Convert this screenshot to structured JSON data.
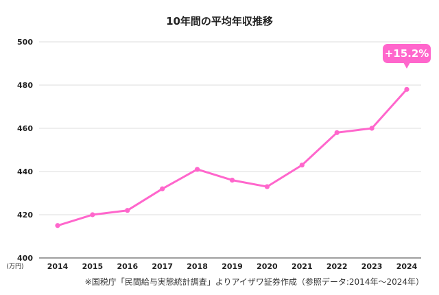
{
  "chart_data": {
    "type": "line",
    "title": "10年間の平均年収推移",
    "unit_label": "(万円)",
    "categories": [
      "2014",
      "2015",
      "2016",
      "2017",
      "2018",
      "2019",
      "2020",
      "2021",
      "2022",
      "2023",
      "2024"
    ],
    "series": [
      {
        "values": [
          415,
          420,
          422,
          432,
          441,
          436,
          433,
          443,
          458,
          460,
          478
        ]
      }
    ],
    "ylim": [
      400,
      500
    ],
    "yticks": [
      "400",
      "420",
      "440",
      "460",
      "480",
      "500"
    ],
    "grid": true,
    "annotation": {
      "text": "+15.2%",
      "category": "2024"
    }
  },
  "colors": {
    "line": "#ff66cc",
    "badge": "#ff66cc",
    "grid": "#dddddd",
    "axis": "#666666"
  },
  "source_note": "※国税庁「民間給与実態統計調査」よりアイザワ証券作成（参照データ:2014年〜2024年）"
}
